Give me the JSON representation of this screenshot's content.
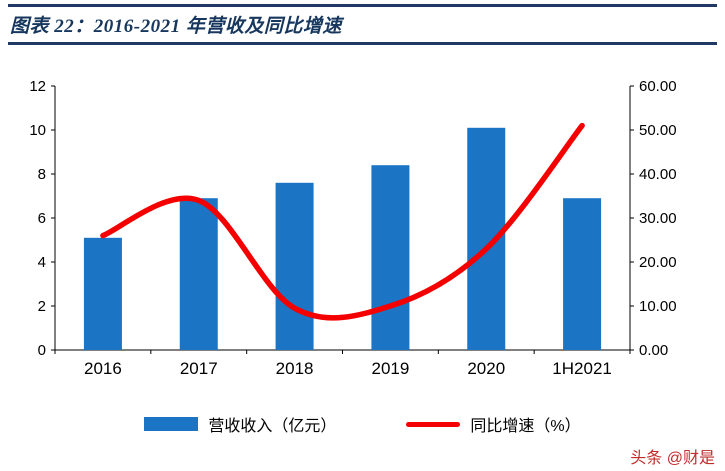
{
  "header": {
    "title": "图表 22：2016-2021 年营收及同比增速"
  },
  "legend": {
    "revenue": "营收收入（亿元）",
    "growth": "同比增速（%）"
  },
  "watermark": {
    "text": "头条 @财是"
  },
  "colors": {
    "bar": "#1B74C4",
    "line": "#F40000",
    "navy": "#1F3864",
    "axis": "#000000"
  },
  "chart_data": {
    "type": "bar+line",
    "title": "图表 22：2016-2021 年营收及同比增速",
    "categories": [
      "2016",
      "2017",
      "2018",
      "2019",
      "2020",
      "1H2021"
    ],
    "series": [
      {
        "name": "营收收入（亿元）",
        "type": "bar",
        "axis": "left",
        "values": [
          5.1,
          6.9,
          7.6,
          8.4,
          10.1,
          6.9
        ]
      },
      {
        "name": "同比增速（%）",
        "type": "line",
        "axis": "right",
        "values": [
          26,
          34,
          9.5,
          10,
          23,
          51
        ]
      }
    ],
    "left_axis": {
      "min": 0,
      "max": 12,
      "ticks": [
        "0",
        "2",
        "4",
        "6",
        "8",
        "10",
        "12"
      ]
    },
    "right_axis": {
      "min": 0,
      "max": 60,
      "ticks": [
        "0.00",
        "10.00",
        "20.00",
        "30.00",
        "40.00",
        "50.00",
        "60.00"
      ]
    },
    "grid": false,
    "legend_position": "bottom"
  }
}
